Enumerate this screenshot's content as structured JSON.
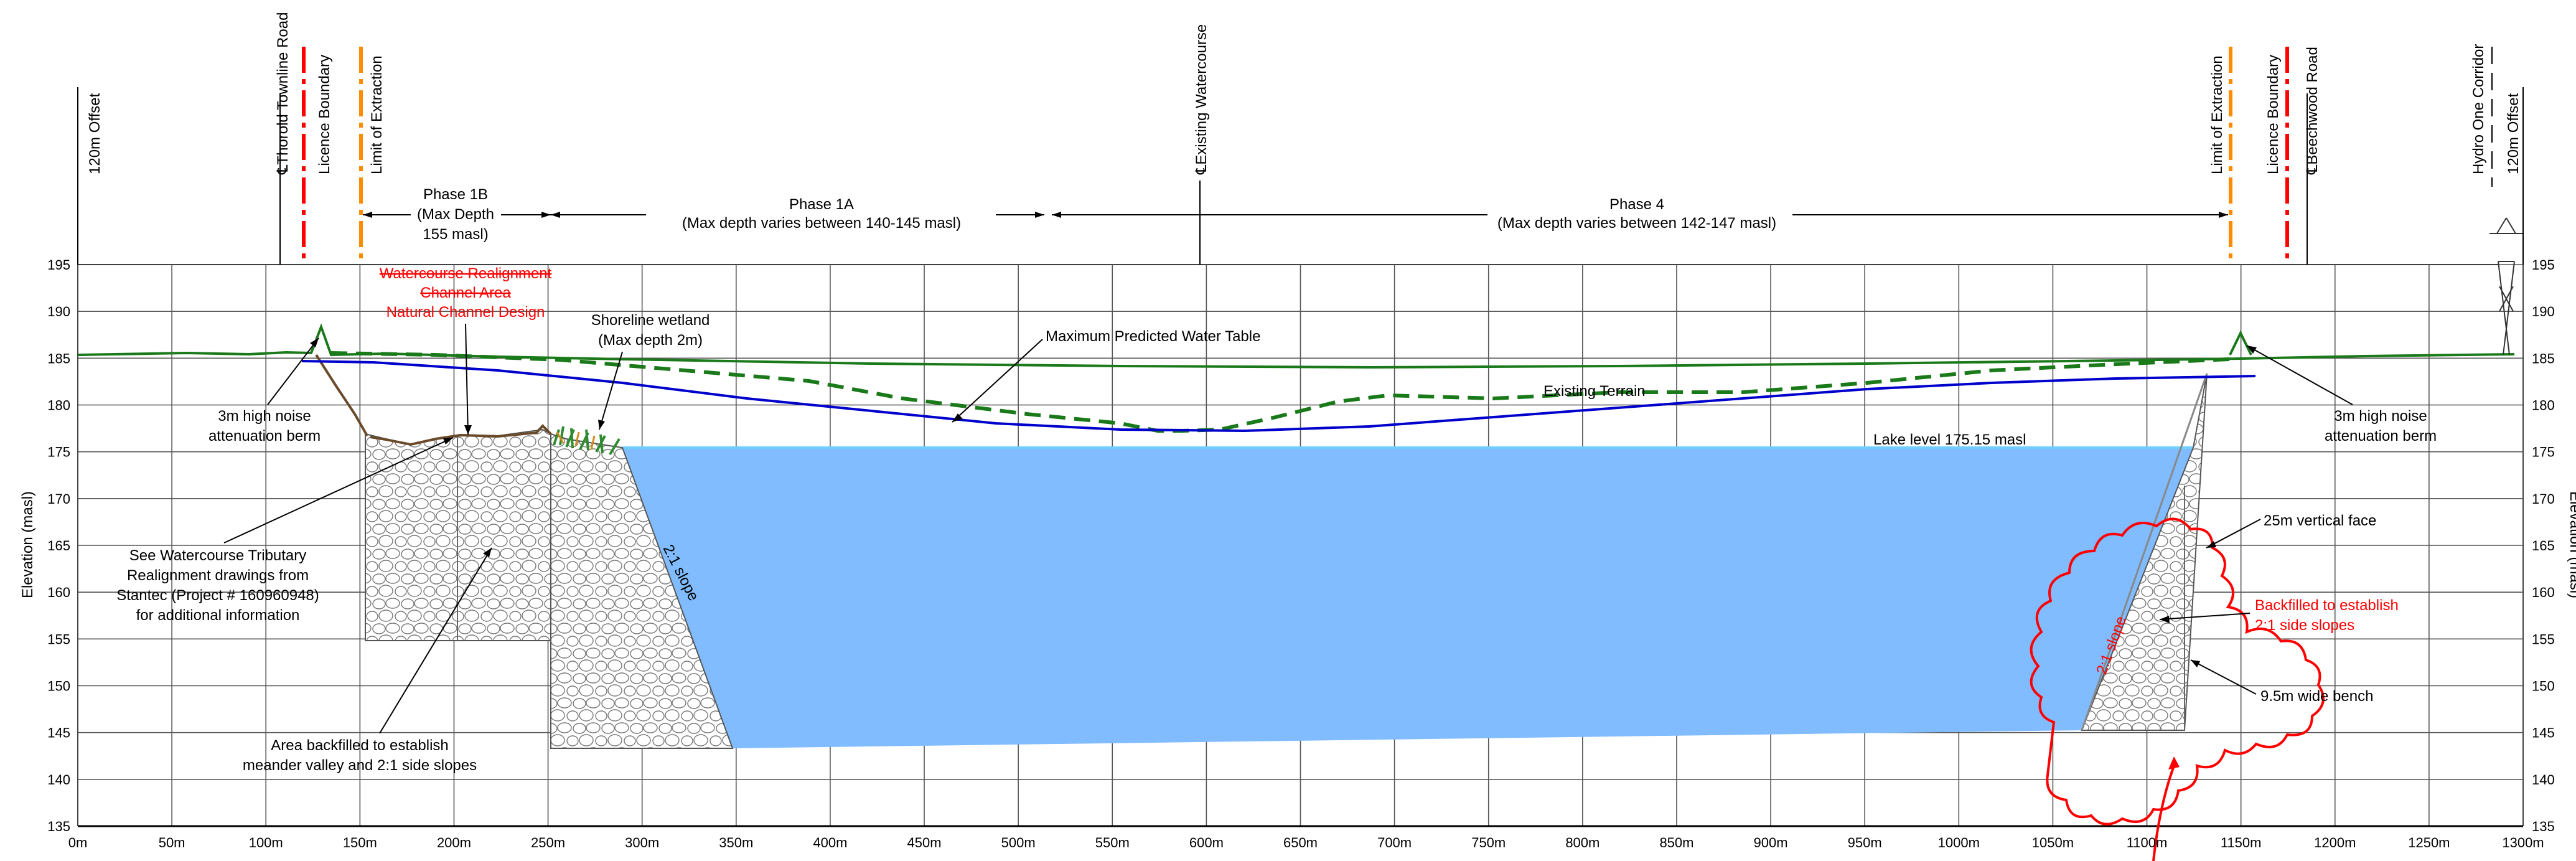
{
  "axes": {
    "left_label": "Elevation (masl)",
    "right_label": "Elevation (masl)",
    "y_ticks": [
      "195",
      "190",
      "185",
      "180",
      "175",
      "170",
      "165",
      "160",
      "155",
      "150",
      "145",
      "140",
      "135"
    ],
    "x_ticks": [
      "0m",
      "50m",
      "100m",
      "150m",
      "200m",
      "250m",
      "300m",
      "350m",
      "400m",
      "450m",
      "500m",
      "550m",
      "600m",
      "650m",
      "700m",
      "750m",
      "800m",
      "850m",
      "900m",
      "950m",
      "1000m",
      "1050m",
      "1100m",
      "1150m",
      "1200m",
      "1250m",
      "1300m"
    ]
  },
  "top_labels": {
    "offset_left": "120m Offset",
    "thorold_road": "℄Thorold Townline Road",
    "licence_left": "Licence Boundary",
    "limit_left": "Limit of Extraction",
    "existing_watercourse": "℄Existing Watercourse",
    "limit_right": "Limit of Extraction",
    "licence_right": "Licence Boundary",
    "beechwood": "℄Beechwood Road",
    "hydro": "Hydro One Corridor",
    "offset_right": "120m Offset"
  },
  "phases": {
    "p1b_l1": "Phase 1B",
    "p1b_l2": "(Max Depth",
    "p1b_l3": "155 masl)",
    "p1a_l1": "Phase 1A",
    "p1a_l2": "(Max depth varies between 140-145 masl)",
    "p4_l1": "Phase 4",
    "p4_l2": "(Max depth varies between 142-147 masl)"
  },
  "annotations": {
    "realign_l1": "Watercourse Realignment",
    "realign_l2": "Channel Area",
    "realign_l3": "Natural Channel Design",
    "wetland_l1": "Shoreline wetland",
    "wetland_l2": "(Max depth 2m)",
    "water_table": "Maximum Predicted Water Table",
    "existing_terrain": "Existing Terrain",
    "lake_level": "Lake level 175.15 masl",
    "berm_left_l1": "3m high noise",
    "berm_left_l2": "attenuation berm",
    "berm_right_l1": "3m high noise",
    "berm_right_l2": "attenuation berm",
    "stantec_l1": "See Watercourse Tributary",
    "stantec_l2": "Realignment drawings from",
    "stantec_l3": "Stantec (Project # 160960948)",
    "stantec_l4": "for additional information",
    "backfill_left_l1": "Area backfilled to establish",
    "backfill_left_l2": "meander valley and 2:1 side slopes",
    "slope_left": "2:1 slope",
    "slope_right": "2:1 slope",
    "vertical_face": "25m vertical face",
    "backfill_right_l1": "Backfilled to establish",
    "backfill_right_l2": "2:1 side slopes",
    "bench": "9.5m wide bench"
  },
  "colors": {
    "lake": "#80bcff",
    "lake_line": "#6fd0ff",
    "water_table": "#0000cc",
    "terrain": "#1a7a1a",
    "limit": "#ff8c00",
    "licence": "#ff0000",
    "revision": "#ff0000"
  }
}
